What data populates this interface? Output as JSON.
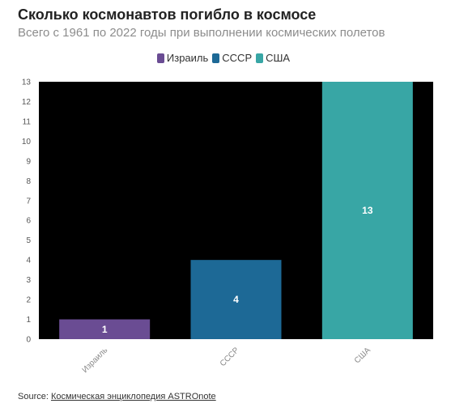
{
  "header": {
    "title": "Сколько космонавтов погибло в космосе",
    "subtitle": "Всего с 1961 по 2022 годы при выполнении космических полетов"
  },
  "chart_data": {
    "type": "bar",
    "categories": [
      "Израиль",
      "СССР",
      "США"
    ],
    "values": [
      1,
      4,
      13
    ],
    "colors": [
      "#6a4c93",
      "#1d6996",
      "#38a6a5"
    ],
    "ylim": [
      0,
      13
    ],
    "y_ticks": [
      "0",
      "1",
      "2",
      "3",
      "4",
      "5",
      "6",
      "7",
      "8",
      "9",
      "10",
      "11",
      "12",
      "13"
    ],
    "data_labels": [
      "1",
      "4",
      "13"
    ],
    "legend": [
      "Израиль",
      "СССР",
      "США"
    ],
    "legend_position": "top-center",
    "plot_background": "#000000",
    "grid": false
  },
  "footer": {
    "source_prefix": "Source: ",
    "source_link": "Космическая энциклопедия ASTROnote"
  }
}
